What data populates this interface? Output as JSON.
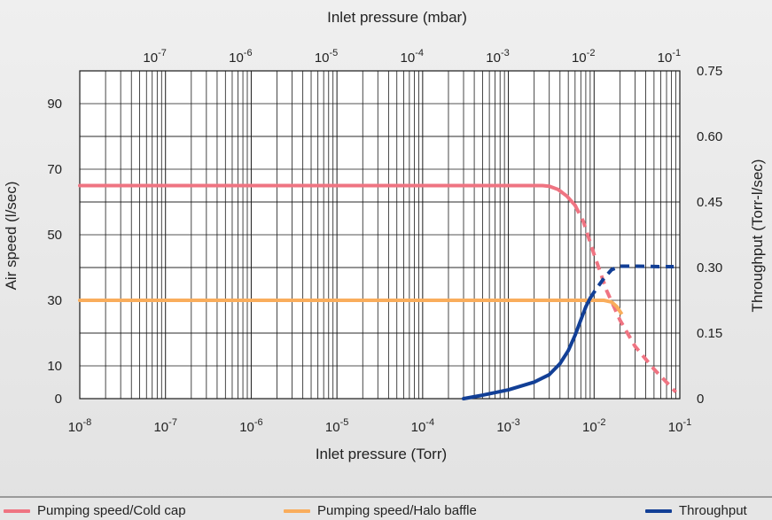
{
  "chart_data": {
    "type": "line",
    "title": "",
    "x_axis_top": {
      "label": "Inlet pressure (mbar)",
      "scale": "log",
      "ticks": [
        "10^-7",
        "10^-6",
        "10^-5",
        "10^-4",
        "10^-3",
        "10^-2",
        "10^-1"
      ]
    },
    "x_axis_bottom": {
      "label": "Inlet pressure (Torr)",
      "scale": "log",
      "xlim": [
        "10^-8",
        "10^-1"
      ],
      "ticks": [
        "10^-8",
        "10^-7",
        "10^-6",
        "10^-5",
        "10^-4",
        "10^-3",
        "10^-2",
        "10^-1"
      ]
    },
    "y_axis_left": {
      "label": "Air speed (l/sec)",
      "ylim": [
        0,
        100
      ],
      "ticks": [
        "0",
        "10",
        "30",
        "50",
        "70",
        "90"
      ]
    },
    "y_axis_right": {
      "label": "Throughput (Torr-l/sec)",
      "ylim": [
        0,
        0.75
      ],
      "ticks": [
        "0",
        "0.15",
        "0.30",
        "0.45",
        "0.60",
        "0.75"
      ]
    },
    "grid": true,
    "legend_position": "bottom",
    "series": [
      {
        "name": "Pumping speed/Cold cap",
        "color": "#ef7482",
        "axis": "left",
        "solid": [
          [
            1e-08,
            65
          ],
          [
            0.0025,
            65
          ],
          [
            0.003,
            64.8
          ],
          [
            0.0038,
            63.8
          ],
          [
            0.0048,
            61.8
          ],
          [
            0.006,
            59
          ]
        ],
        "dashed": [
          [
            0.006,
            59
          ],
          [
            0.0075,
            54
          ],
          [
            0.01,
            44
          ],
          [
            0.014,
            33
          ],
          [
            0.02,
            24
          ],
          [
            0.03,
            16
          ],
          [
            0.05,
            9
          ],
          [
            0.07,
            5
          ],
          [
            0.09,
            2
          ]
        ]
      },
      {
        "name": "Pumping speed/Halo baffle",
        "color": "#f9ad5c",
        "axis": "left",
        "solid": [
          [
            1e-08,
            30
          ],
          [
            0.013,
            30
          ],
          [
            0.016,
            29.5
          ],
          [
            0.0185,
            28
          ]
        ],
        "dashed": [
          [
            0.0185,
            28
          ],
          [
            0.022,
            25
          ]
        ]
      },
      {
        "name": "Throughput",
        "color": "#123f96",
        "axis": "right",
        "solid": [
          [
            0.0003,
            0
          ],
          [
            0.0005,
            0.008
          ],
          [
            0.001,
            0.02
          ],
          [
            0.002,
            0.038
          ],
          [
            0.003,
            0.055
          ],
          [
            0.004,
            0.08
          ],
          [
            0.005,
            0.11
          ],
          [
            0.006,
            0.145
          ],
          [
            0.007,
            0.18
          ],
          [
            0.008,
            0.21
          ],
          [
            0.009,
            0.23
          ]
        ],
        "dashed": [
          [
            0.009,
            0.23
          ],
          [
            0.0105,
            0.25
          ],
          [
            0.013,
            0.275
          ],
          [
            0.016,
            0.295
          ],
          [
            0.02,
            0.303
          ],
          [
            0.03,
            0.303
          ],
          [
            0.06,
            0.302
          ],
          [
            0.085,
            0.302
          ]
        ]
      }
    ]
  },
  "legend": {
    "items": [
      {
        "label": "Pumping speed/Cold cap",
        "color": "#ef7482"
      },
      {
        "label": "Pumping speed/Halo baffle",
        "color": "#f9ad5c"
      },
      {
        "label": "Throughput",
        "color": "#123f96"
      }
    ]
  }
}
